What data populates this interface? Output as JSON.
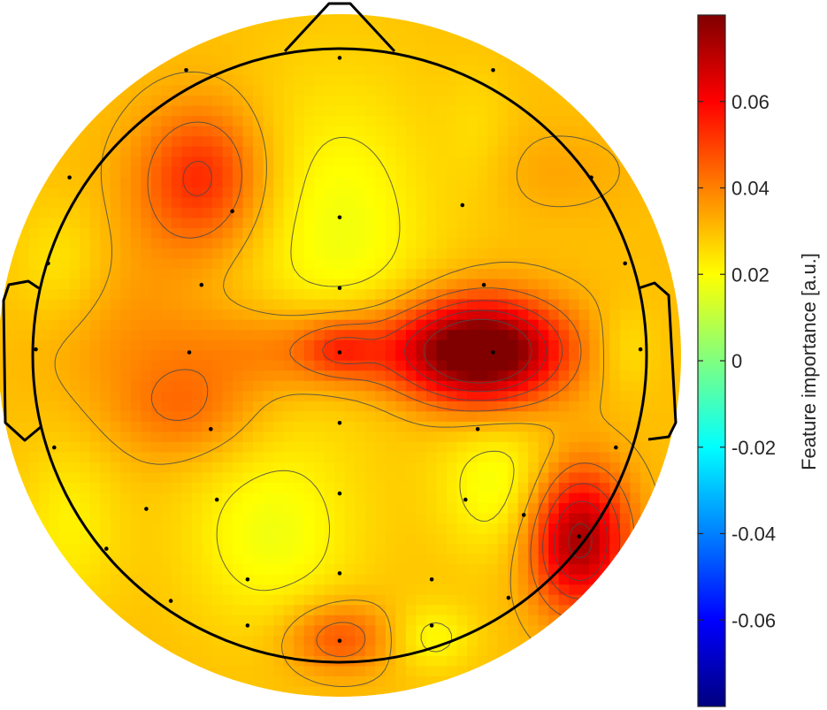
{
  "chart_data": {
    "type": "heatmap",
    "subtype": "eeg-topographic-map",
    "title": "",
    "colormap": "jet",
    "colorbar": {
      "label": "Feature importance [a.u.]",
      "range": [
        -0.08,
        0.08
      ],
      "ticks": [
        0.06,
        0.04,
        0.02,
        0,
        -0.02,
        -0.04,
        -0.06
      ],
      "tick_labels": [
        "0.06",
        "0.04",
        "0.02",
        "0",
        "-0.02",
        "-0.04",
        "-0.06"
      ],
      "placement": "right"
    },
    "baseline": 0.03,
    "contours": true,
    "contour_levels": [
      0.012,
      0.022,
      0.032,
      0.042,
      0.052,
      0.062,
      0.072
    ],
    "head_outline": {
      "nose": "top",
      "ears": "left-right"
    },
    "note_coordinates": "electrode and blob coordinates are normalized head coordinates (x right, y up, head radius = 1), i.e. data units of the topographic map",
    "electrodes": [
      [
        0,
        0.97
      ],
      [
        -0.5,
        0.93
      ],
      [
        0.5,
        0.93
      ],
      [
        -0.88,
        0.58
      ],
      [
        -0.35,
        0.47
      ],
      [
        0,
        0.45
      ],
      [
        0.4,
        0.49
      ],
      [
        0.82,
        0.58
      ],
      [
        -0.95,
        0.3
      ],
      [
        -0.45,
        0.23
      ],
      [
        0,
        0.22
      ],
      [
        0.47,
        0.23
      ],
      [
        0.93,
        0.3
      ],
      [
        -0.99,
        0.02
      ],
      [
        -0.49,
        0.01
      ],
      [
        0,
        0.01
      ],
      [
        0.5,
        0.01
      ],
      [
        0.98,
        0.02
      ],
      [
        -0.93,
        -0.3
      ],
      [
        -0.42,
        -0.24
      ],
      [
        0,
        -0.22
      ],
      [
        0.45,
        -0.24
      ],
      [
        0.9,
        -0.3
      ],
      [
        -0.63,
        -0.5
      ],
      [
        -0.4,
        -0.47
      ],
      [
        0,
        -0.45
      ],
      [
        0.41,
        -0.47
      ],
      [
        0.6,
        -0.52
      ],
      [
        -0.76,
        -0.63
      ],
      [
        -0.3,
        -0.73
      ],
      [
        0,
        -0.71
      ],
      [
        0.3,
        -0.73
      ],
      [
        0.78,
        -0.59
      ],
      [
        -0.55,
        -0.8
      ],
      [
        -0.3,
        -0.88
      ],
      [
        0,
        -0.93
      ],
      [
        0.3,
        -0.88
      ],
      [
        0.55,
        -0.79
      ]
    ],
    "blobs": [
      {
        "x": 0.47,
        "y": 0.01,
        "sx": 0.17,
        "sy": 0.12,
        "amp": 0.052
      },
      {
        "x": 0.12,
        "y": 0.02,
        "sx": 0.38,
        "sy": 0.1,
        "amp": 0.02
      },
      {
        "x": 0.0,
        "y": 0.02,
        "sx": 0.08,
        "sy": 0.06,
        "amp": 0.013
      },
      {
        "x": -0.45,
        "y": 0.58,
        "sx": 0.14,
        "sy": 0.16,
        "amp": 0.024
      },
      {
        "x": -0.5,
        "y": -0.18,
        "sx": 0.16,
        "sy": 0.11,
        "amp": 0.012
      },
      {
        "x": 0.78,
        "y": -0.6,
        "sx": 0.11,
        "sy": 0.16,
        "amp": 0.046
      },
      {
        "x": 0.0,
        "y": -0.92,
        "sx": 0.12,
        "sy": 0.08,
        "amp": 0.018
      },
      {
        "x": 0.0,
        "y": 0.4,
        "sx": 0.22,
        "sy": 0.35,
        "amp": -0.012
      },
      {
        "x": 0.45,
        "y": 0.72,
        "sx": 0.08,
        "sy": 0.16,
        "amp": -0.004
      },
      {
        "x": -0.22,
        "y": -0.58,
        "sx": 0.2,
        "sy": 0.22,
        "amp": -0.012
      },
      {
        "x": 0.52,
        "y": -0.42,
        "sx": 0.14,
        "sy": 0.17,
        "amp": -0.012
      },
      {
        "x": 0.3,
        "y": -0.92,
        "sx": 0.1,
        "sy": 0.08,
        "amp": -0.01
      },
      {
        "x": -0.9,
        "y": 0.3,
        "sx": 0.12,
        "sy": 0.15,
        "amp": -0.008
      },
      {
        "x": -0.88,
        "y": -0.55,
        "sx": 0.12,
        "sy": 0.2,
        "amp": -0.008
      },
      {
        "x": 0.93,
        "y": 0.02,
        "sx": 0.08,
        "sy": 0.1,
        "amp": -0.007
      },
      {
        "x": 0.7,
        "y": 0.6,
        "sx": 0.18,
        "sy": 0.1,
        "amp": 0.004
      },
      {
        "x": -0.7,
        "y": 0.15,
        "sx": 0.2,
        "sy": 0.25,
        "amp": 0.006
      }
    ]
  }
}
